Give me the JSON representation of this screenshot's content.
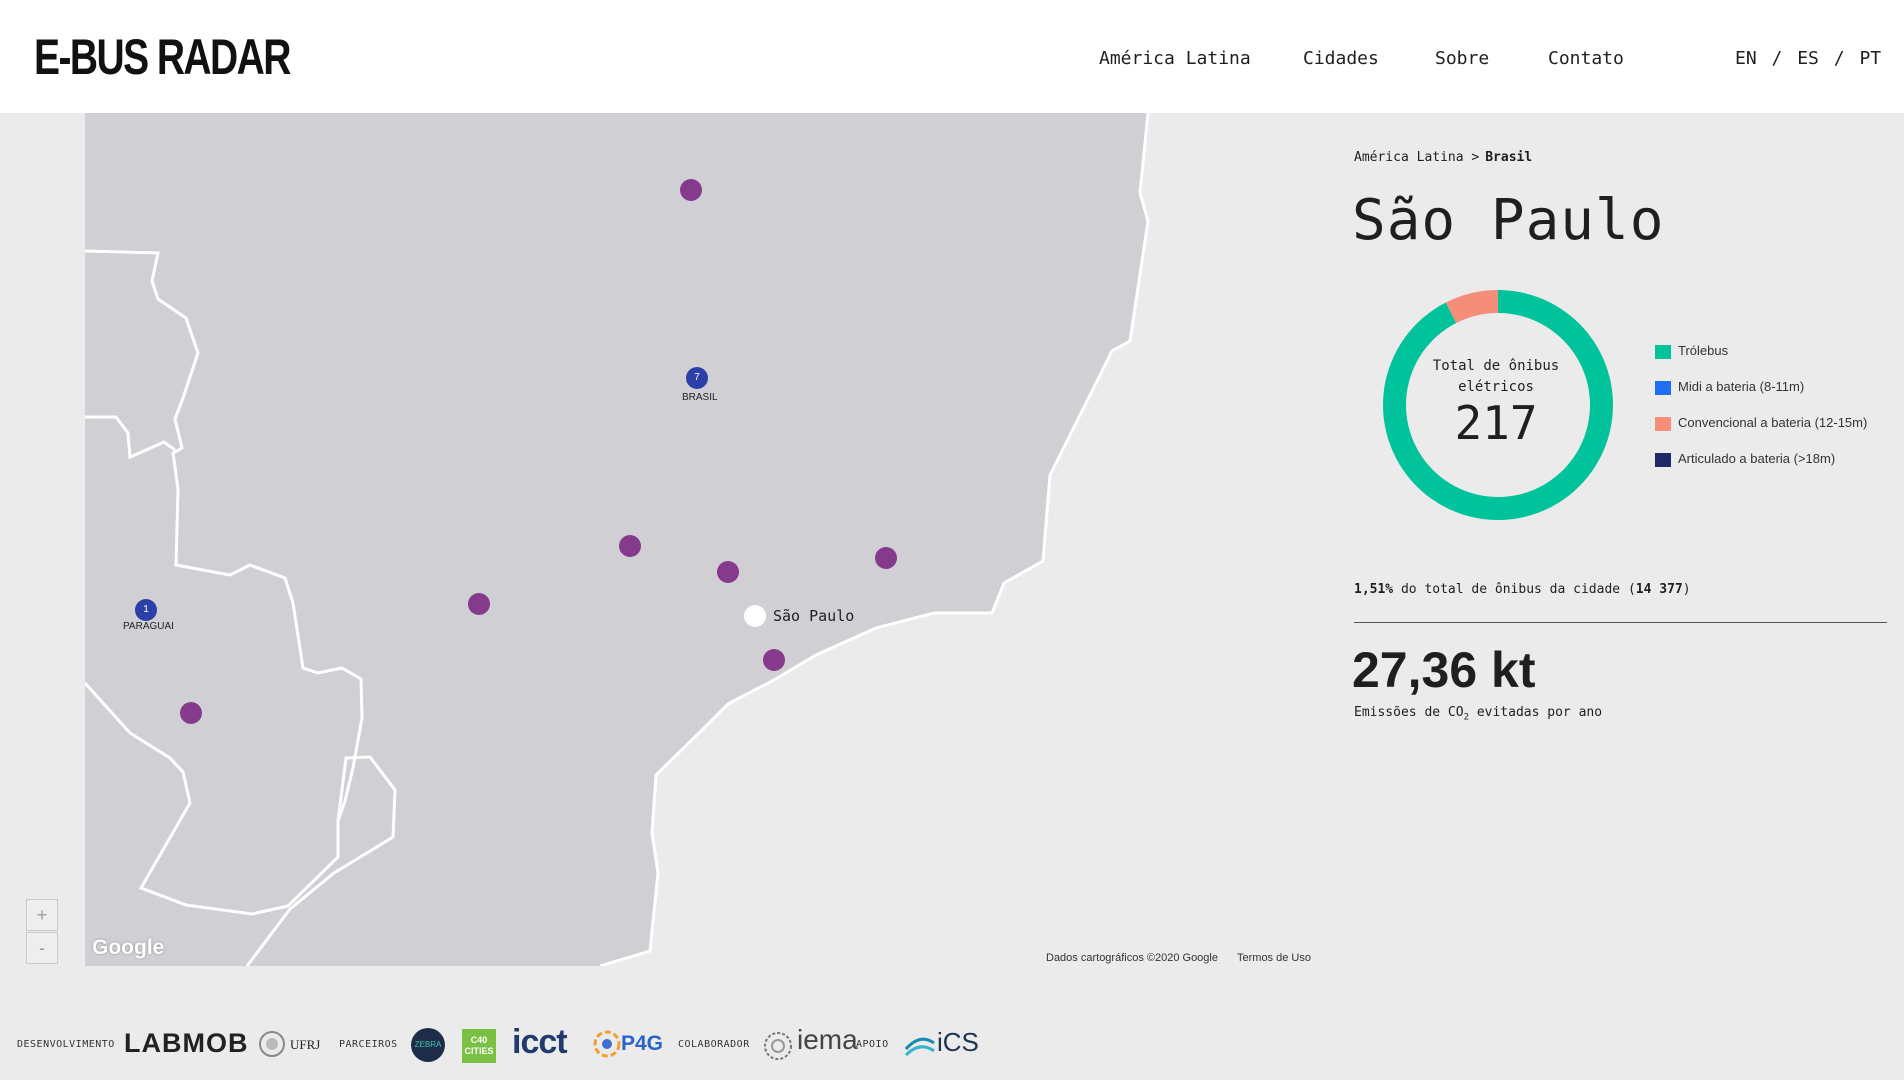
{
  "header": {
    "logo": "E-BUS RADAR",
    "nav": [
      "América Latina",
      "Cidades",
      "Sobre",
      "Contato"
    ],
    "languages": [
      "EN",
      "ES",
      "PT"
    ]
  },
  "map": {
    "zoom_in": "+",
    "zoom_out": "-",
    "google_logo": "Google",
    "attribution": "Dados cartográficos ©2020 Google",
    "terms": "Termos de Uso",
    "markers": [
      {
        "count": "7",
        "label": "BRASIL"
      },
      {
        "count": "1",
        "label": "PARAGUAI"
      }
    ],
    "city_label": "São Paulo",
    "colors": {
      "land": "#d0d0d4",
      "sea": "#ebebeb",
      "border": "#ffffff",
      "city_dot": "#863a8c"
    }
  },
  "panel": {
    "breadcrumb_root": "América Latina >",
    "breadcrumb_current": "Brasil",
    "city": "São Paulo",
    "donut_label": "Total de ônibus elétricos",
    "donut_value": "217",
    "legend": [
      {
        "label": "Trólebus",
        "color": "#00c29b"
      },
      {
        "label": "Midi a bateria (8-11m)",
        "color": "#1f6ff0"
      },
      {
        "label": "Convencional a bateria (12-15m)",
        "color": "#f58d7b"
      },
      {
        "label": "Articulado a bateria (>18m)",
        "color": "#1c2b66"
      }
    ],
    "donut_segments": [
      {
        "name": "Trólebus",
        "fraction": 0.925,
        "color": "#00c29b"
      },
      {
        "name": "Convencional a bateria (12-15m)",
        "fraction": 0.075,
        "color": "#f58d7b"
      }
    ],
    "share_pct": "1,51%",
    "share_text": "do total de ônibus da cidade (",
    "share_total": "14 377",
    "share_close": ")",
    "emissions_value": "27,36 kt",
    "emissions_label_pre": "Emissões de CO",
    "emissions_label_sub": "2",
    "emissions_label_post": "evitadas por ano"
  },
  "footer": {
    "dev_label": "DESENVOLVIMENTO",
    "labmob": "LABMOB",
    "ufrj": "UFRJ",
    "partners_label": "PARCEIROS",
    "zebra": "ZEBRA",
    "c40": "C40 CITIES",
    "icct": "icct",
    "p4g": "P4G",
    "collab_label": "COLABORADOR",
    "iema": "iema",
    "support_label": "APOIO",
    "ics": "iCS"
  }
}
